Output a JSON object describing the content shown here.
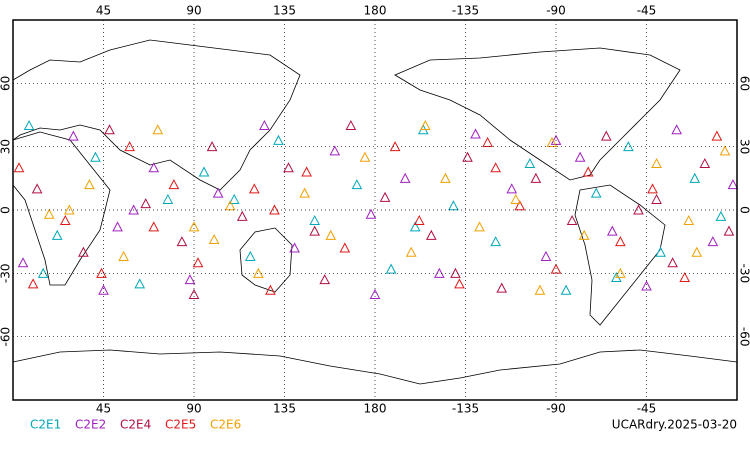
{
  "chart_data": {
    "type": "scatter",
    "xlim": [
      0,
      360
    ],
    "xticks": [
      45,
      90,
      135,
      180,
      {
        "value": 225,
        "label": "-135"
      },
      {
        "value": 270,
        "label": "-90"
      },
      {
        "value": 315,
        "label": "-45"
      }
    ],
    "ylim": [
      -90,
      90
    ],
    "yticks": [
      -60,
      -30,
      0,
      30,
      60
    ],
    "grid": true,
    "legend": "bottom-left",
    "annotation": "UCARdry.2025-03-20",
    "series": [
      {
        "name": "C2E1",
        "color": "#00a8b8",
        "x": [
          8,
          22,
          41,
          63,
          77,
          95,
          118,
          132,
          150,
          171,
          188,
          204,
          219,
          240,
          257,
          275,
          290,
          306,
          322,
          339,
          352,
          15,
          110,
          200,
          300
        ],
        "values": [
          40,
          -12,
          25,
          -35,
          5,
          18,
          -22,
          33,
          -5,
          12,
          -28,
          38,
          2,
          -15,
          22,
          -38,
          8,
          30,
          -20,
          15,
          -3,
          -30,
          5,
          -8,
          -32
        ]
      },
      {
        "name": "C2E2",
        "color": "#a020c0",
        "x": [
          5,
          30,
          52,
          70,
          88,
          102,
          125,
          140,
          160,
          178,
          195,
          212,
          230,
          248,
          265,
          282,
          298,
          315,
          330,
          348,
          358,
          60,
          180,
          270,
          45
        ],
        "values": [
          -25,
          35,
          -8,
          20,
          -33,
          8,
          40,
          -18,
          28,
          -2,
          15,
          -30,
          36,
          10,
          -22,
          25,
          -10,
          -36,
          38,
          -15,
          12,
          0,
          -40,
          33,
          -38
        ]
      },
      {
        "name": "C2E4",
        "color": "#b01040",
        "x": [
          12,
          35,
          48,
          66,
          84,
          99,
          114,
          137,
          155,
          168,
          185,
          208,
          226,
          243,
          260,
          278,
          295,
          311,
          328,
          344,
          356,
          90,
          220,
          150,
          320
        ],
        "values": [
          10,
          -20,
          38,
          3,
          -15,
          30,
          -3,
          20,
          -33,
          40,
          6,
          -12,
          25,
          -37,
          15,
          -5,
          35,
          0,
          -25,
          22,
          -10,
          -40,
          -30,
          -10,
          5
        ]
      },
      {
        "name": "C2E5",
        "color": "#e01818",
        "x": [
          3,
          26,
          44,
          58,
          80,
          92,
          120,
          128,
          146,
          165,
          190,
          202,
          222,
          236,
          252,
          270,
          286,
          302,
          318,
          334,
          350,
          70,
          240,
          130,
          10
        ],
        "values": [
          20,
          -5,
          -30,
          30,
          12,
          -25,
          10,
          -38,
          18,
          -18,
          30,
          -5,
          -35,
          32,
          2,
          -28,
          18,
          -15,
          10,
          -32,
          35,
          -8,
          20,
          0,
          -35
        ]
      },
      {
        "name": "C2E6",
        "color": "#f0a000",
        "x": [
          18,
          38,
          55,
          72,
          90,
          108,
          122,
          145,
          158,
          175,
          198,
          215,
          232,
          250,
          268,
          284,
          302,
          320,
          336,
          354,
          28,
          100,
          205,
          262,
          340
        ],
        "values": [
          -2,
          12,
          -22,
          38,
          -8,
          2,
          -30,
          8,
          -12,
          25,
          -20,
          15,
          -8,
          5,
          32,
          -12,
          -30,
          22,
          -5,
          28,
          0,
          -14,
          40,
          -38,
          -20
        ]
      }
    ]
  }
}
